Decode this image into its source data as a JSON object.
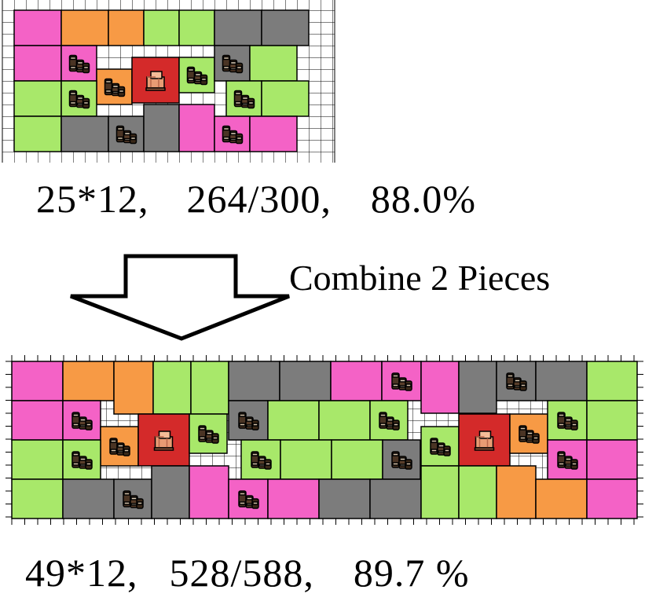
{
  "colors": {
    "pink": "#f462c6",
    "orange": "#f79a45",
    "green": "#a8e86a",
    "gray": "#7c7c7c",
    "red": "#d42a2a",
    "grid": "#000000",
    "crate": "#f0b088",
    "barrel": "#4a3424"
  },
  "icons": {
    "barrels": "barrels-icon",
    "crates": "crates-icon"
  },
  "top_layout": {
    "caption": [
      "25*12,",
      "264/300,",
      "88.0%"
    ],
    "dimensions": "25*12",
    "filled": 264,
    "total": 300,
    "percent": "88.0%"
  },
  "arrow_label": "Combine 2 Pieces",
  "bottom_layout": {
    "caption": [
      "49*12,",
      "528/588,",
      "89.7 %"
    ],
    "dimensions": "49*12",
    "filled": 528,
    "total": 588,
    "percent": "89.7 %"
  }
}
